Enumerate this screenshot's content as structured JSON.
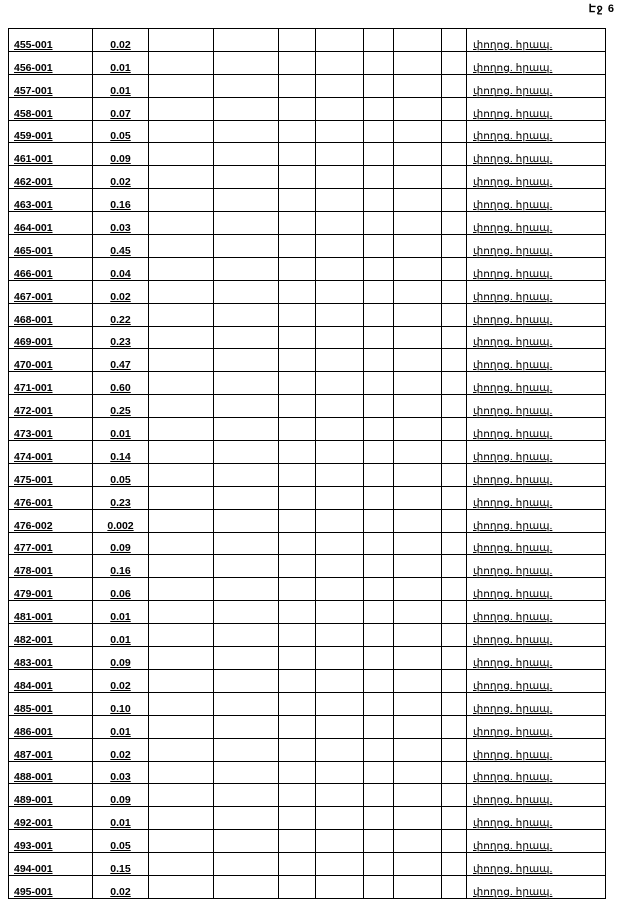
{
  "page_label": "Էջ 6",
  "rows": [
    {
      "id": "455-001",
      "value": "0.02",
      "status": "փողոց. հրապ."
    },
    {
      "id": "456-001",
      "value": "0.01",
      "status": "փողոց. հրապ."
    },
    {
      "id": "457-001",
      "value": "0.01",
      "status": "փողոց. հրապ."
    },
    {
      "id": "458-001",
      "value": "0.07",
      "status": "փողոց. հրապ."
    },
    {
      "id": "459-001",
      "value": "0.05",
      "status": "փողոց. հրապ."
    },
    {
      "id": "461-001",
      "value": "0.09",
      "status": "փողոց. հրապ."
    },
    {
      "id": "462-001",
      "value": "0.02",
      "status": "փողոց. հրապ."
    },
    {
      "id": "463-001",
      "value": "0.16",
      "status": "փողոց. հրապ."
    },
    {
      "id": "464-001",
      "value": "0.03",
      "status": "փողոց. հրապ."
    },
    {
      "id": "465-001",
      "value": "0.45",
      "status": "փողոց. հրապ."
    },
    {
      "id": "466-001",
      "value": "0.04",
      "status": "փողոց. հրապ."
    },
    {
      "id": "467-001",
      "value": "0.02",
      "status": "փողոց. հրապ."
    },
    {
      "id": "468-001",
      "value": "0.22",
      "status": "փողոց. հրապ."
    },
    {
      "id": "469-001",
      "value": "0.23",
      "status": "փողոց. հրապ."
    },
    {
      "id": "470-001",
      "value": "0.47",
      "status": "փողոց. հրապ."
    },
    {
      "id": "471-001",
      "value": "0.60",
      "status": "փողոց. հրապ."
    },
    {
      "id": "472-001",
      "value": "0.25",
      "status": "փողոց. հրապ."
    },
    {
      "id": "473-001",
      "value": "0.01",
      "status": "փողոց. հրապ."
    },
    {
      "id": "474-001",
      "value": "0.14",
      "status": "փողոց. հրապ."
    },
    {
      "id": "475-001",
      "value": "0.05",
      "status": "փողոց. հրապ."
    },
    {
      "id": "476-001",
      "value": "0.23",
      "status": "փողոց. հրապ."
    },
    {
      "id": "476-002",
      "value": "0.002",
      "status": "փողոց. հրապ."
    },
    {
      "id": "477-001",
      "value": "0.09",
      "status": "փողոց. հրապ."
    },
    {
      "id": "478-001",
      "value": "0.16",
      "status": "փողոց. հրապ."
    },
    {
      "id": "479-001",
      "value": "0.06",
      "status": "փողոց. հրապ."
    },
    {
      "id": "481-001",
      "value": "0.01",
      "status": "փողոց. հրապ."
    },
    {
      "id": "482-001",
      "value": "0.01",
      "status": "փողոց. հրապ."
    },
    {
      "id": "483-001",
      "value": "0.09",
      "status": "փողոց. հրապ."
    },
    {
      "id": "484-001",
      "value": "0.02",
      "status": "փողոց. հրապ."
    },
    {
      "id": "485-001",
      "value": "0.10",
      "status": "փողոց. հրապ."
    },
    {
      "id": "486-001",
      "value": "0.01",
      "status": "փողոց. հրապ."
    },
    {
      "id": "487-001",
      "value": "0.02",
      "status": "փողոց. հրապ."
    },
    {
      "id": "488-001",
      "value": "0.03",
      "status": "փողոց. հրապ."
    },
    {
      "id": "489-001",
      "value": "0.09",
      "status": "փողոց. հրապ."
    },
    {
      "id": "492-001",
      "value": "0.01",
      "status": "փողոց. հրապ."
    },
    {
      "id": "493-001",
      "value": "0.05",
      "status": "փողոց. հրապ."
    },
    {
      "id": "494-001",
      "value": "0.15",
      "status": "փողոց. հրապ."
    },
    {
      "id": "495-001",
      "value": "0.02",
      "status": "փողոց. հրապ."
    }
  ]
}
